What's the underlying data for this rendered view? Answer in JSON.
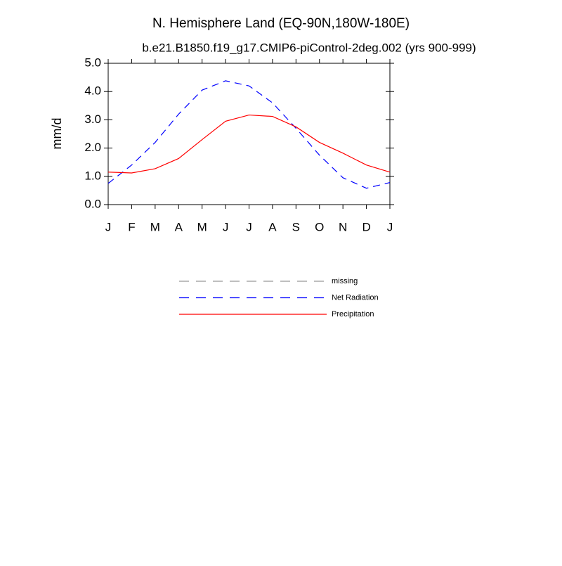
{
  "chart_data": {
    "type": "line",
    "title": "N. Hemisphere Land (EQ-90N,180W-180E)",
    "subtitle": "b.e21.B1850.f19_g17.CMIP6-piControl-2deg.002 (yrs 900-999)",
    "y_label": "mm/d",
    "categories": [
      "J",
      "F",
      "M",
      "A",
      "M",
      "J",
      "J",
      "A",
      "S",
      "O",
      "N",
      "D",
      "J"
    ],
    "series": [
      {
        "name": "missing",
        "color": "#999999",
        "dash": true,
        "values": [
          null,
          null,
          null,
          null,
          null,
          null,
          null,
          null,
          null,
          null,
          null,
          null,
          null
        ]
      },
      {
        "name": "Net Radiation",
        "color": "#0000ff",
        "dash": true,
        "values": [
          0.75,
          1.4,
          2.2,
          3.2,
          4.05,
          4.38,
          4.2,
          3.6,
          2.7,
          1.75,
          0.95,
          0.58,
          0.78
        ]
      },
      {
        "name": "Precipitation",
        "color": "#ff0000",
        "dash": false,
        "values": [
          1.15,
          1.12,
          1.27,
          1.63,
          2.3,
          2.95,
          3.17,
          3.12,
          2.75,
          2.2,
          1.82,
          1.4,
          1.15
        ]
      }
    ],
    "ylim": [
      0,
      5
    ],
    "yticks": [
      {
        "value": 0,
        "label": "0.0"
      },
      {
        "value": 1,
        "label": "1.0"
      },
      {
        "value": 2,
        "label": "2.0"
      },
      {
        "value": 3,
        "label": "3.0"
      },
      {
        "value": 4,
        "label": "4.0"
      },
      {
        "value": 5,
        "label": "5.0"
      }
    ]
  }
}
